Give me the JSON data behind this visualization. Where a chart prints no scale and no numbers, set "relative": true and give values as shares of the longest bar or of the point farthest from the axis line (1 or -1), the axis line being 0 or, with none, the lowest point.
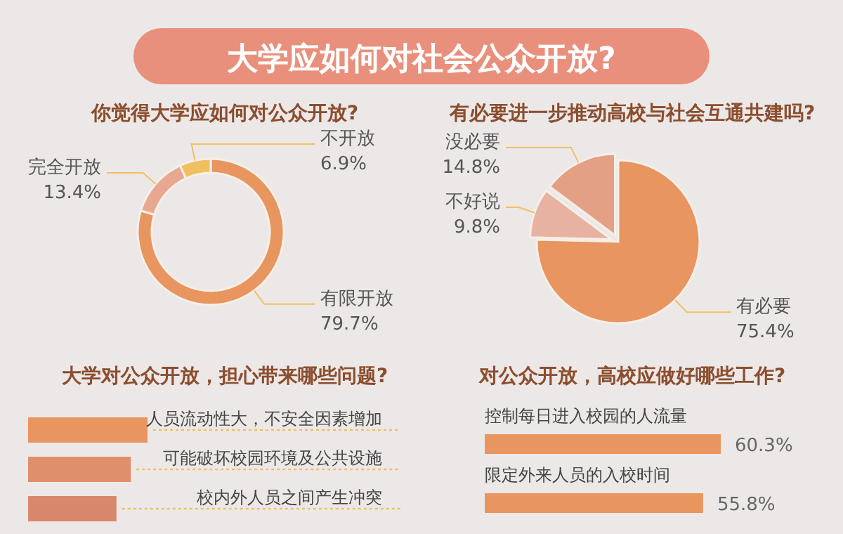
{
  "chart_data": [
    {
      "type": "donut",
      "title": "大学应如何对社会公众开放?",
      "subtitle": "你觉得大学应如何对公众开放?",
      "categories": [
        "有限开放",
        "完全开放",
        "不开放"
      ],
      "values": [
        79.7,
        13.4,
        6.9
      ],
      "colors": [
        "#e8955f",
        "#e8a890",
        "#f0c060"
      ],
      "value_labels": [
        "79.7%",
        "13.4%",
        "6.9%"
      ]
    },
    {
      "type": "pie",
      "title": "有必要进一步推动高校与社会互通共建吗?",
      "categories": [
        "有必要",
        "不好说",
        "没必要"
      ],
      "values": [
        75.4,
        9.8,
        14.8
      ],
      "colors": [
        "#e8955f",
        "#e8b2a2",
        "#e3a084"
      ],
      "value_labels": [
        "75.4%",
        "9.8%",
        "14.8%"
      ]
    },
    {
      "type": "bar",
      "orientation": "horizontal",
      "title": "大学对公众开放，担心带来哪些问题?",
      "categories": [
        "人员流动性大，不安全因素增加",
        "可能破坏校园环境及公共设施",
        "校内外人员之间产生冲突"
      ],
      "values": [
        1,
        0.86,
        0.74
      ],
      "colors": [
        "#e8955f",
        "#df8f6c",
        "#d8876c"
      ],
      "relative": true
    },
    {
      "type": "bar",
      "orientation": "horizontal",
      "title": "对公众开放，高校应做好哪些工作?",
      "categories": [
        "控制每日进入校园的人流量",
        "限定外来人员的入校时间"
      ],
      "values": [
        60.3,
        55.8
      ],
      "color": "#e8955f",
      "value_labels": [
        "60.3%",
        "55.8%"
      ]
    }
  ]
}
